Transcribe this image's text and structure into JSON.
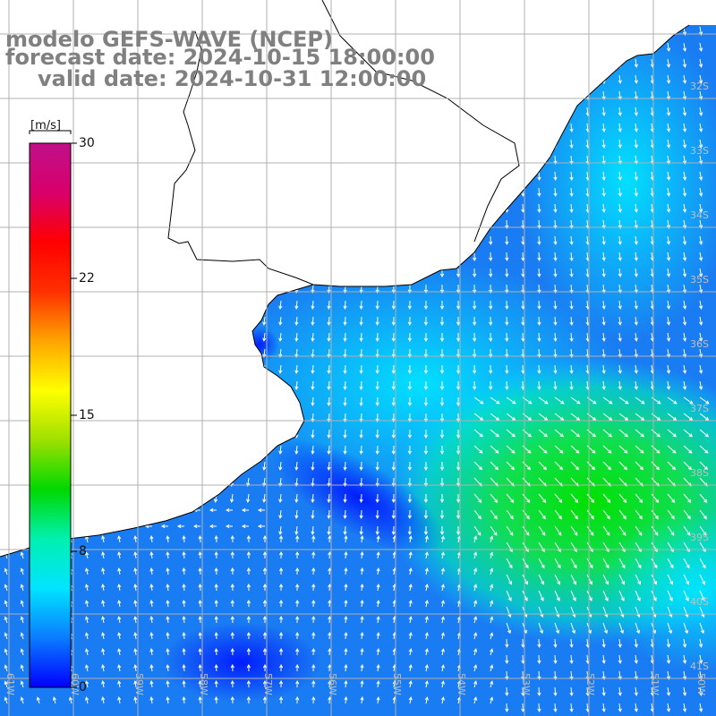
{
  "title": {
    "line1": "modelo GEFS-WAVE (NCEP)",
    "line2": "forecast date: 2024-10-15 18:00:00",
    "line3": "valid date: 2024-10-31 12:00:00"
  },
  "colorbar": {
    "unit": "[m/s]",
    "min": 0,
    "max": 30,
    "ticks": [
      {
        "label": "30",
        "value": 30
      },
      {
        "label": "22",
        "value": 22
      },
      {
        "label": "15",
        "value": 15
      },
      {
        "label": "8",
        "value": 8
      },
      {
        "label": "0",
        "value": 0
      }
    ],
    "colors": [
      "#0000ff",
      "#0a7cff",
      "#00e4ff",
      "#00f0b0",
      "#00d800",
      "#9fe000",
      "#ffff00",
      "#ffa500",
      "#ff3000",
      "#ff0000",
      "#d8006a",
      "#c0108a"
    ]
  },
  "map": {
    "land_color": "#ffffff",
    "grid_color": "#b0b0b0",
    "coast_color": "#000000",
    "lat_labels": [
      "32S",
      "33S",
      "34S",
      "35S",
      "36S",
      "37S",
      "38S",
      "39S",
      "40S",
      "41S"
    ],
    "lon_labels": [
      "61W",
      "60W",
      "59W",
      "58W",
      "57W",
      "56W",
      "55W",
      "54W",
      "53W",
      "52W",
      "51W",
      "50W"
    ]
  }
}
